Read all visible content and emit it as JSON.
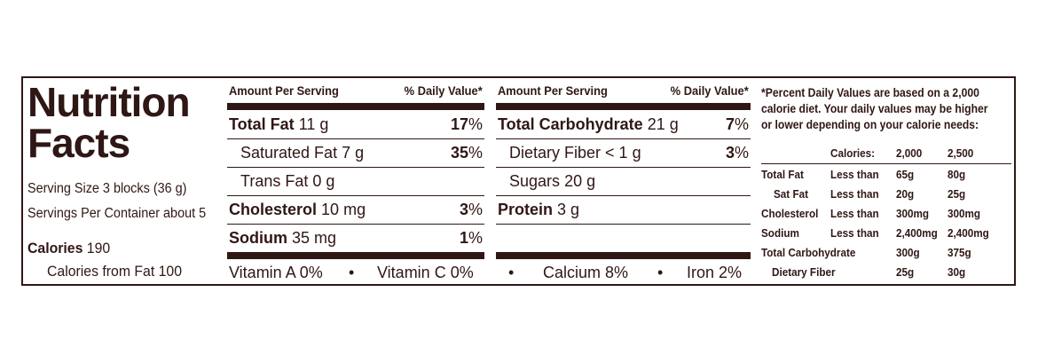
{
  "title_line1": "Nutrition",
  "title_line2": "Facts",
  "serving_size": "Serving Size 3 blocks (36 g)",
  "servings_per_container": "Servings Per Container about 5",
  "calories_label": "Calories",
  "calories_value": "190",
  "calories_from_fat": "Calories from Fat 100",
  "header_amount": "Amount Per Serving",
  "header_dv": "% Daily Value*",
  "left_nutrients": [
    {
      "name": "Total Fat",
      "amount": "11 g",
      "dv": "17",
      "bold": true
    },
    {
      "name": "Saturated Fat",
      "amount": "7 g",
      "dv": "35",
      "bold": false
    },
    {
      "name": "Trans Fat",
      "amount": "0 g",
      "dv": "",
      "bold": false
    },
    {
      "name": "Cholesterol",
      "amount": "10 mg",
      "dv": "3",
      "bold": true
    },
    {
      "name": "Sodium",
      "amount": "35 mg",
      "dv": "1",
      "bold": true
    }
  ],
  "right_nutrients": [
    {
      "name": "Total Carbohydrate",
      "amount": "21 g",
      "dv": "7",
      "bold": true
    },
    {
      "name": "Dietary Fiber",
      "amount": "< 1 g",
      "dv": "3",
      "bold": false
    },
    {
      "name": "Sugars",
      "amount": "20 g",
      "dv": "",
      "bold": false
    },
    {
      "name": "Protein",
      "amount": "3 g",
      "dv": "",
      "bold": true
    }
  ],
  "vitamins": {
    "vitamin_a": "Vitamin A 0%",
    "vitamin_c": "Vitamin C 0%",
    "calcium": "Calcium 8%",
    "iron": "Iron 2%",
    "bullet": "•"
  },
  "footnote": [
    "*Percent Daily Values are based on a 2,000",
    "calorie diet. Your daily values may be higher",
    "or lower depending on your calorie needs:"
  ],
  "dv_table": {
    "header": [
      "",
      "Calories:",
      "2,000",
      "2,500"
    ],
    "rows": [
      [
        "Total Fat",
        "Less than",
        "65g",
        "80g"
      ],
      [
        "Sat Fat",
        "Less than",
        "20g",
        "25g"
      ],
      [
        "Cholesterol",
        "Less than",
        "300mg",
        "300mg"
      ],
      [
        "Sodium",
        "Less than",
        "2,400mg",
        "2,400mg"
      ],
      [
        "Total Carbohydrate",
        "",
        "300g",
        "375g"
      ],
      [
        "Dietary Fiber",
        "",
        "25g",
        "30g"
      ]
    ]
  }
}
